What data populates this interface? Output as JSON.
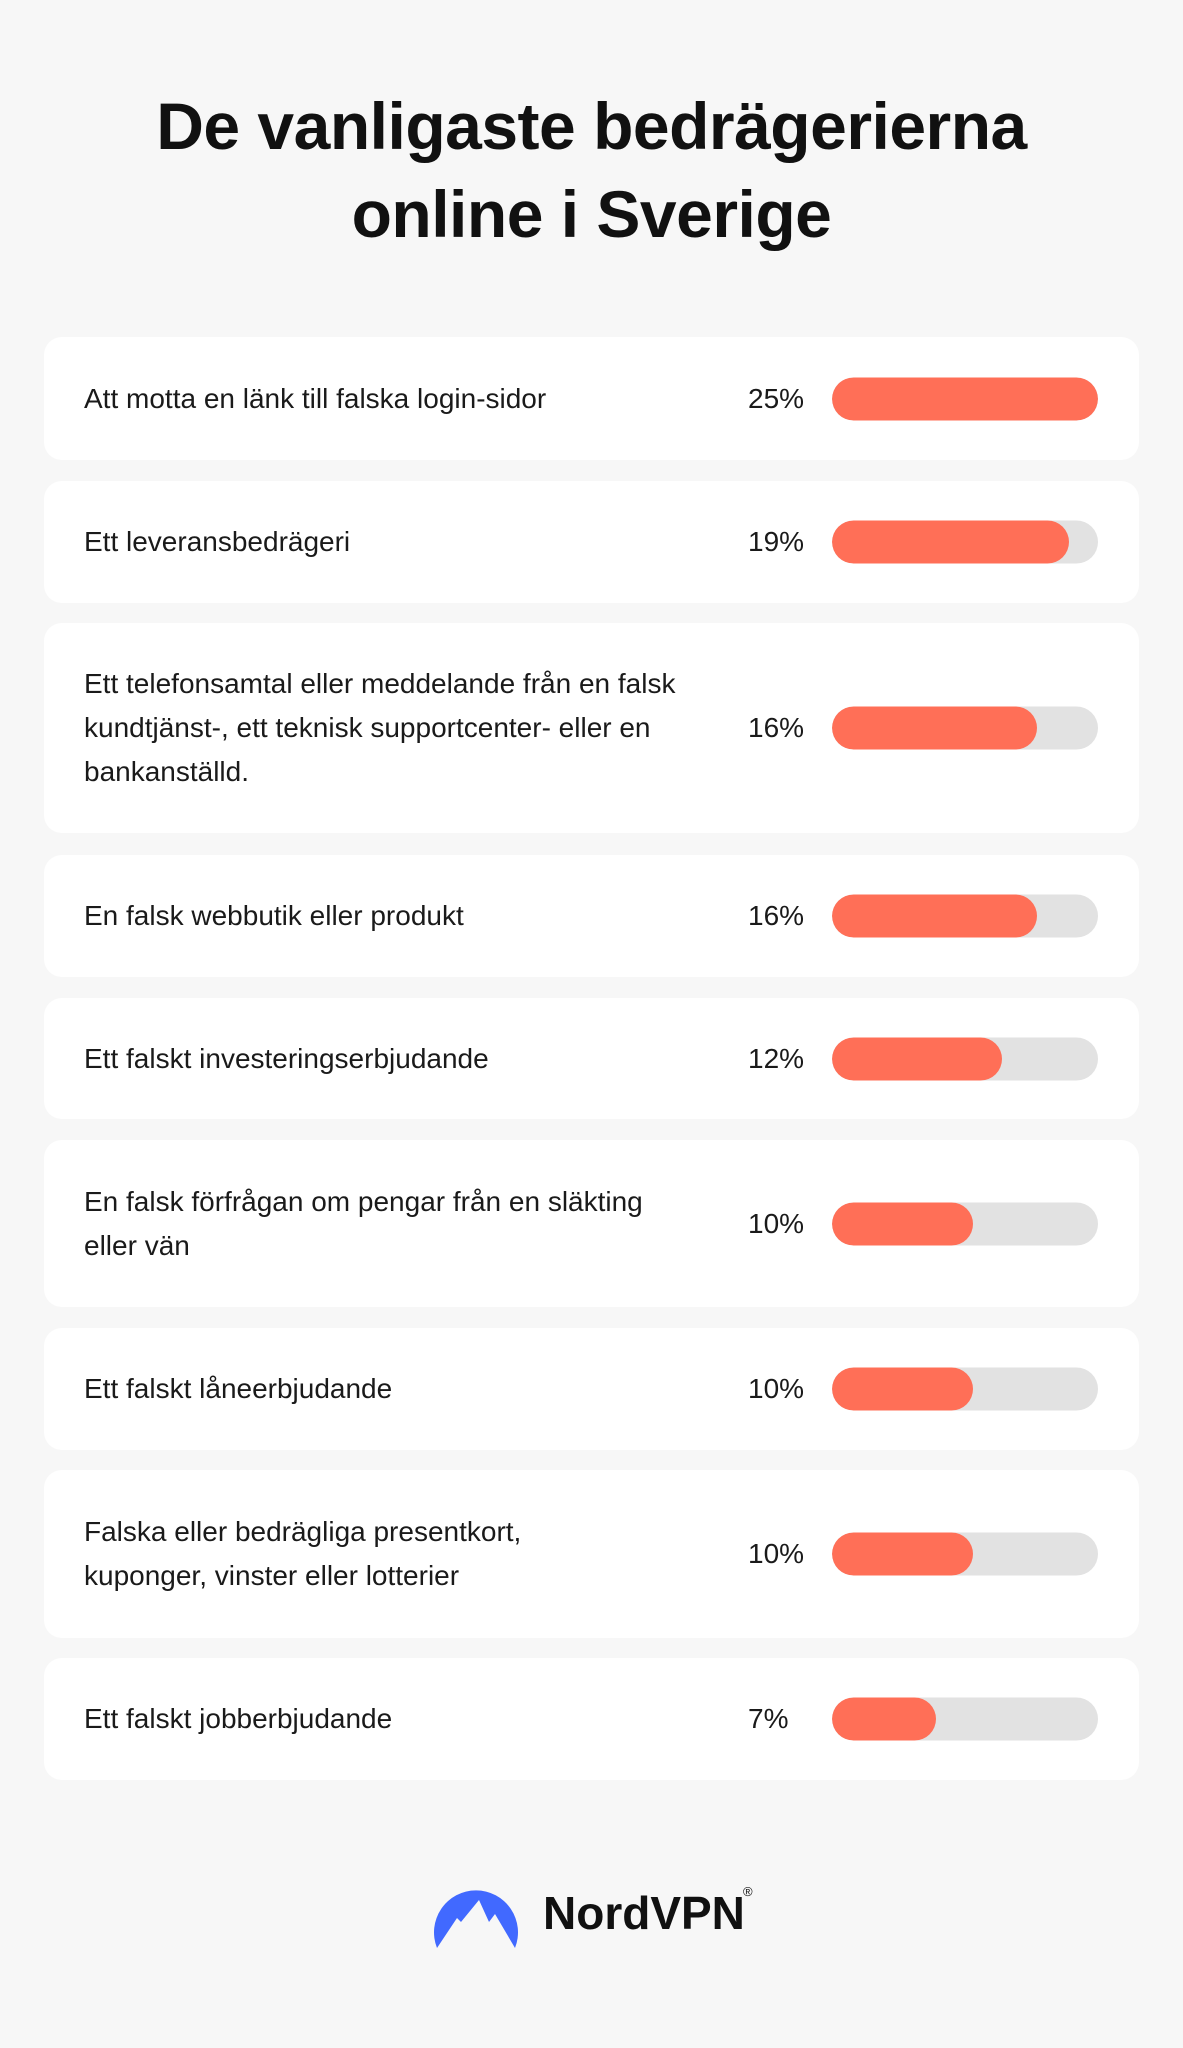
{
  "title_lines": [
    "De vanligaste bedrägerierna",
    "online i Sverige"
  ],
  "chart_data": {
    "type": "bar",
    "orientation": "horizontal",
    "title": "De vanligaste bedrägerierna online i Sverige",
    "categories": [
      "Att motta en länk till falska login-sidor",
      "Ett leveransbedrägeri",
      "Ett telefonsamtal eller meddelande från en falsk kundtjänst-, ett teknisk supportcenter- eller en bankanställd.",
      "En falsk webbutik eller produkt",
      "Ett falskt investeringserbjudande",
      "En falsk förfrågan om pengar från en släkting eller vän",
      "Ett falskt låneerbjudande",
      "Falska eller bedrägliga presentkort, kuponger, vinster eller lotterier",
      "Ett falskt jobberbjudande"
    ],
    "values": [
      25,
      19,
      16,
      16,
      12,
      10,
      10,
      10,
      7
    ],
    "labels": [
      "25%",
      "19%",
      "16%",
      "16%",
      "12%",
      "10%",
      "10%",
      "10%",
      "7%"
    ],
    "bar_fill": [
      1.0,
      0.89,
      0.77,
      0.77,
      0.64,
      0.53,
      0.53,
      0.53,
      0.39
    ],
    "unit": "%",
    "colors": {
      "bar": "#ff6f57",
      "track": "#e2e2e2",
      "card": "#ffffff",
      "background": "#f7f7f7"
    }
  },
  "brand": {
    "name": "NordVPN",
    "registered": "®",
    "logo_color": "#4169ff"
  }
}
